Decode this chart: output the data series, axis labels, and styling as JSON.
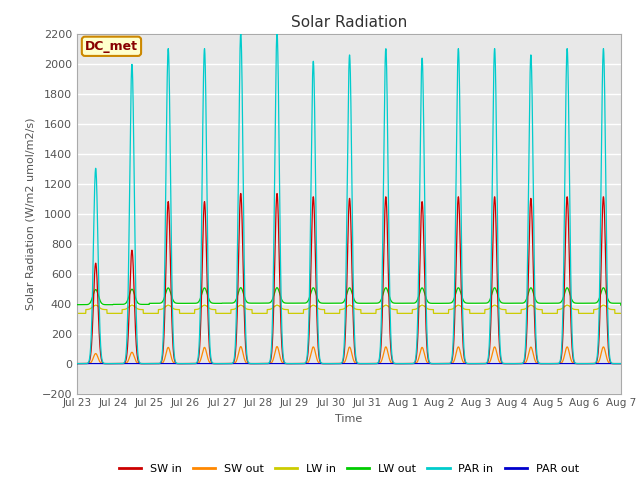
{
  "title": "Solar Radiation",
  "ylabel": "Solar Radiation (W/m2 umol/m2/s)",
  "xlabel": "Time",
  "ylim": [
    -200,
    2200
  ],
  "yticks": [
    -200,
    0,
    200,
    400,
    600,
    800,
    1000,
    1200,
    1400,
    1600,
    1800,
    2000,
    2200
  ],
  "n_days": 15,
  "points_per_day": 288,
  "series_colors": {
    "SW_in": "#cc0000",
    "SW_out": "#ff8800",
    "LW_in": "#cccc00",
    "LW_out": "#00cc00",
    "PAR_in": "#00cccc",
    "PAR_out": "#0000cc"
  },
  "legend_labels": [
    "SW in",
    "SW out",
    "LW in",
    "LW out",
    "PAR in",
    "PAR out"
  ],
  "legend_colors": [
    "#cc0000",
    "#ff8800",
    "#cccc00",
    "#00cc00",
    "#00cccc",
    "#0000cc"
  ],
  "annotation_text": "DC_met",
  "annotation_bg": "#ffffcc",
  "annotation_border": "#cc8800",
  "annotation_text_color": "#880000",
  "background_color": "#e8e8e8",
  "tick_label_color": "#555555",
  "grid_color": "#ffffff",
  "figsize": [
    6.4,
    4.8
  ],
  "dpi": 100
}
